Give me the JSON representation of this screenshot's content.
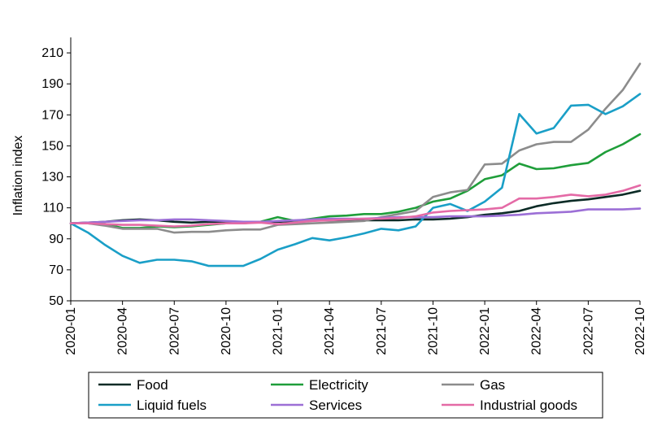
{
  "chart_data": {
    "type": "line",
    "ylabel": "Inflation index",
    "xlabel": "",
    "ylim": [
      50,
      220
    ],
    "y_ticks": [
      50,
      70,
      90,
      110,
      130,
      150,
      170,
      190,
      210
    ],
    "x_tick_labels": [
      "2020-01",
      "2020-04",
      "2020-07",
      "2020-10",
      "2021-01",
      "2021-04",
      "2021-07",
      "2021-10",
      "2022-01",
      "2022-04",
      "2022-07",
      "2022-10"
    ],
    "x_tick_every": 3,
    "grid": false,
    "legend_position": "bottom",
    "x": [
      "2020-01",
      "2020-02",
      "2020-03",
      "2020-04",
      "2020-05",
      "2020-06",
      "2020-07",
      "2020-08",
      "2020-09",
      "2020-10",
      "2020-11",
      "2020-12",
      "2021-01",
      "2021-02",
      "2021-03",
      "2021-04",
      "2021-05",
      "2021-06",
      "2021-07",
      "2021-08",
      "2021-09",
      "2021-10",
      "2021-11",
      "2021-12",
      "2022-01",
      "2022-02",
      "2022-03",
      "2022-04",
      "2022-05",
      "2022-06",
      "2022-07",
      "2022-08",
      "2022-09",
      "2022-10"
    ],
    "series": [
      {
        "name": "Food",
        "color": "#0b2b26",
        "values": [
          100,
          100.5,
          101,
          102,
          102.5,
          102,
          101,
          100.5,
          101,
          101,
          100.5,
          101,
          101,
          101.5,
          102,
          102,
          102,
          102,
          102,
          102,
          102.5,
          102.5,
          103,
          104,
          105.5,
          106.5,
          108,
          111,
          113,
          114.5,
          115.5,
          117,
          118.5,
          121
        ]
      },
      {
        "name": "Electricity",
        "color": "#1f9e3a",
        "values": [
          100,
          100,
          99.5,
          97,
          97,
          98,
          97.5,
          98,
          99,
          100,
          100,
          101,
          104,
          101.5,
          103,
          104.5,
          105,
          106,
          106,
          107.5,
          110,
          114,
          116,
          121,
          128.5,
          131,
          138.5,
          135,
          135.5,
          137.5,
          139,
          146,
          151,
          157.5
        ]
      },
      {
        "name": "Gas",
        "color": "#8c8c8c",
        "values": [
          100,
          100,
          98.5,
          96.5,
          96.5,
          96.5,
          94,
          94.5,
          94.5,
          95.5,
          96,
          96,
          99,
          99.5,
          100,
          100.5,
          101,
          101.5,
          104,
          106,
          108,
          117,
          120,
          121.5,
          138,
          138.5,
          147,
          151,
          152.5,
          152.5,
          160.5,
          174,
          186,
          203
        ]
      },
      {
        "name": "Liquid fuels",
        "color": "#1a9fc7",
        "values": [
          100,
          94,
          86,
          79,
          74.5,
          76.5,
          76.5,
          75.5,
          72.5,
          72.5,
          72.5,
          77,
          83,
          86.5,
          90.5,
          89,
          91,
          93.5,
          96.5,
          95.5,
          98,
          110,
          112.5,
          108,
          114,
          123,
          170.5,
          158,
          161.5,
          176,
          176.5,
          170.5,
          175.5,
          183.5
        ]
      },
      {
        "name": "Services",
        "color": "#9c6fd6",
        "values": [
          100,
          100.5,
          101,
          101.5,
          102,
          102,
          102.5,
          102.5,
          102,
          101.5,
          101,
          101,
          101.5,
          102,
          102.5,
          103,
          103,
          103,
          103.5,
          104,
          104,
          104,
          104.5,
          104.5,
          104.5,
          105,
          105.5,
          106.5,
          107,
          107.5,
          109,
          109,
          109,
          109.5
        ]
      },
      {
        "name": "Industrial goods",
        "color": "#e46aa6",
        "values": [
          100,
          100,
          99.5,
          99,
          99,
          98.5,
          98,
          98.5,
          99.5,
          100,
          100,
          100.5,
          99.5,
          100.5,
          101.5,
          102,
          102.5,
          103,
          103,
          103.5,
          104.5,
          107,
          108,
          108.5,
          109,
          110,
          116,
          116,
          117,
          118.5,
          117.5,
          118.5,
          121,
          124.5
        ]
      }
    ]
  }
}
